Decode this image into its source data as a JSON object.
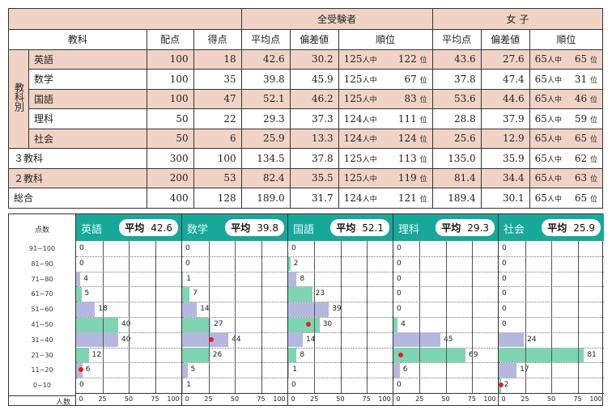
{
  "table": {
    "group_all": "全受験者",
    "group_female": "女 子",
    "headers": {
      "subject": "教科",
      "max": "配点",
      "score": "得点",
      "avg": "平均点",
      "dev": "偏差値",
      "rank": "順位"
    },
    "side_label": "教科別",
    "rows": [
      {
        "name": "英語",
        "max": "100",
        "score": "18",
        "avg": "42.6",
        "dev": "30.2",
        "total": "125",
        "rank": "122",
        "f_avg": "43.6",
        "f_dev": "27.6",
        "f_total": "65",
        "f_rank": "65"
      },
      {
        "name": "数学",
        "max": "100",
        "score": "35",
        "avg": "39.8",
        "dev": "45.9",
        "total": "125",
        "rank": "67",
        "f_avg": "37.8",
        "f_dev": "47.4",
        "f_total": "65",
        "f_rank": "31"
      },
      {
        "name": "国語",
        "max": "100",
        "score": "47",
        "avg": "52.1",
        "dev": "46.2",
        "total": "125",
        "rank": "83",
        "f_avg": "53.6",
        "f_dev": "44.6",
        "f_total": "65",
        "f_rank": "46"
      },
      {
        "name": "理科",
        "max": "50",
        "score": "22",
        "avg": "29.3",
        "dev": "37.3",
        "total": "124",
        "rank": "111",
        "f_avg": "28.8",
        "f_dev": "37.9",
        "f_total": "65",
        "f_rank": "59"
      },
      {
        "name": "社会",
        "max": "50",
        "score": "6",
        "avg": "25.9",
        "dev": "13.3",
        "total": "124",
        "rank": "124",
        "f_avg": "25.6",
        "f_dev": "12.9",
        "f_total": "65",
        "f_rank": "65"
      },
      {
        "name": "３教科",
        "max": "300",
        "score": "100",
        "avg": "134.5",
        "dev": "37.8",
        "total": "125",
        "rank": "113",
        "f_avg": "135.0",
        "f_dev": "35.9",
        "f_total": "65",
        "f_rank": "62"
      },
      {
        "name": "２教科",
        "max": "200",
        "score": "53",
        "avg": "82.4",
        "dev": "35.5",
        "total": "125",
        "rank": "119",
        "f_avg": "81.4",
        "f_dev": "34.4",
        "f_total": "65",
        "f_rank": "63"
      },
      {
        "name": "総合",
        "max": "400",
        "score": "128",
        "avg": "189.0",
        "dev": "31.7",
        "total": "124",
        "rank": "121",
        "f_avg": "189.4",
        "f_dev": "30.1",
        "f_total": "65",
        "f_rank": "65"
      }
    ],
    "of_unit": "人中",
    "rank_unit": "位"
  },
  "chart_data": {
    "type": "bar",
    "row_header": "点数",
    "axis_label": "人数",
    "categories": [
      "91~100",
      "81~90",
      "71~80",
      "61~70",
      "51~60",
      "41~50",
      "31~40",
      "21~30",
      "11~20",
      "0~10"
    ],
    "xticks": [
      0,
      25,
      50,
      75,
      100
    ],
    "xlim": [
      0,
      100
    ],
    "avg_label": "平均",
    "colors": {
      "header": "#17a89a",
      "bar_a": "#b5b8de",
      "bar_b": "#7fd4b2",
      "marker": "#e0202a"
    },
    "panels": [
      {
        "name": "英語",
        "avg": "42.6",
        "values": [
          0,
          0,
          4,
          5,
          18,
          40,
          40,
          12,
          6,
          0
        ],
        "student_bin": 8
      },
      {
        "name": "数学",
        "avg": "39.8",
        "values": [
          0,
          0,
          1,
          7,
          14,
          27,
          44,
          26,
          5,
          1
        ],
        "student_bin": 6
      },
      {
        "name": "国語",
        "avg": "52.1",
        "values": [
          0,
          2,
          8,
          23,
          39,
          30,
          14,
          8,
          1,
          0
        ],
        "student_bin": 5
      },
      {
        "name": "理科",
        "avg": "29.3",
        "values": [
          0,
          0,
          0,
          0,
          0,
          4,
          45,
          69,
          6,
          0
        ],
        "student_bin": 7
      },
      {
        "name": "社会",
        "avg": "25.9",
        "values": [
          0,
          0,
          0,
          0,
          0,
          0,
          24,
          81,
          17,
          2
        ],
        "student_bin": 9
      }
    ]
  }
}
